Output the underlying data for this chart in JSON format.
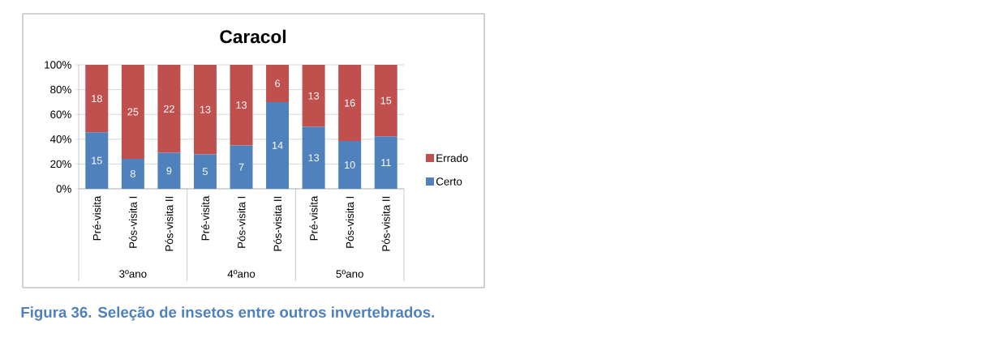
{
  "chart_data": {
    "type": "bar",
    "stacked": true,
    "title": "Caracol",
    "categories": [
      "Pré-visita",
      "Pós-visita I",
      "Pós-visita II",
      "Pré-visita",
      "Pós-visita I",
      "Pós-visita II",
      "Pré-visita",
      "Pós-visita I",
      "Pós-visita II"
    ],
    "series": [
      {
        "name": "Certo",
        "color": "#4f81bd",
        "values": [
          45.5,
          24.2,
          29.0,
          27.8,
          35.0,
          70.0,
          50.0,
          38.5,
          42.3
        ]
      },
      {
        "name": "Errado",
        "color": "#c0504d",
        "values": [
          54.5,
          75.8,
          71.0,
          72.2,
          65.0,
          30.0,
          50.0,
          61.5,
          57.7
        ]
      }
    ],
    "ylim": [
      0,
      100
    ],
    "yticks": [
      {
        "value": 0,
        "label": "0%"
      },
      {
        "value": 20,
        "label": "20%"
      },
      {
        "value": 40,
        "label": "40%"
      },
      {
        "value": 60,
        "label": "60%"
      },
      {
        "value": 80,
        "label": "80%"
      },
      {
        "value": 100,
        "label": "100%"
      }
    ],
    "grid": "y",
    "legend": "right",
    "annotations": [
      "3ºano",
      "4ºano",
      "5ºano",
      "Figura 36. Seleção de insetos entre outros invertebrados.",
      "15",
      "8",
      "9",
      "5",
      "7",
      "14",
      "13",
      "10",
      "11",
      "18",
      "25",
      "22",
      "13",
      "13",
      "6",
      "13",
      "16",
      "15"
    ]
  }
}
